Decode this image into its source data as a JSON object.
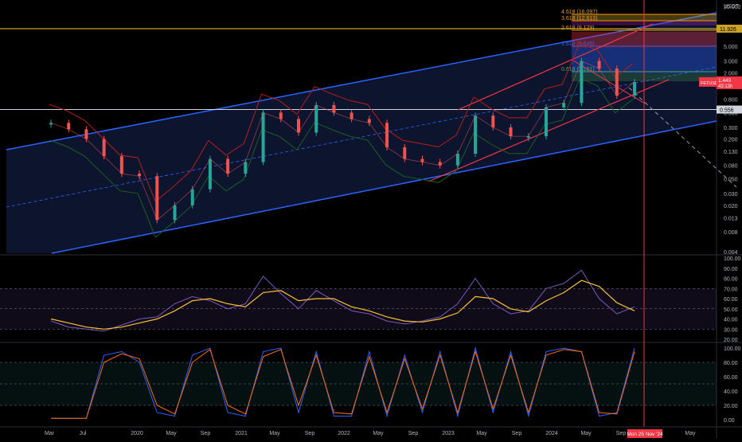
{
  "currency": "USDT",
  "price_badge": {
    "symbol": "FETUSDT",
    "price": "1.449",
    "countdown": "43:13h"
  },
  "white_line_label": "0.556",
  "gold_line_label": "11.926",
  "fib_labels": [
    "4.618 (16.097)",
    "3.618 (12.613)",
    "2.618 (9.129)",
    "1.618 (5.645)",
    "0.618 (2.161)"
  ],
  "cursor_date": "Mon 25 Nov '24",
  "x_ticks": [
    "Mar",
    "Jul",
    "2020",
    "May",
    "Sep",
    "2021",
    "May",
    "Sep",
    "2022",
    "May",
    "Sep",
    "2023",
    "May",
    "Sep",
    "2024",
    "May",
    "Sep",
    "May"
  ],
  "colors": {
    "accent_red": "#f23645",
    "channel_blue": "#2962ff",
    "gold": "#c9a227"
  },
  "chart_data": [
    {
      "type": "line",
      "name": "FET/USDT price (log scale)",
      "scale": "log",
      "ylim": [
        0.004,
        20
      ],
      "y_ticks": [
        "20.000",
        "10.000",
        "5.000",
        "3.000",
        "2.000",
        "1.300",
        "0.800",
        "0.500",
        "0.300",
        "0.200",
        "0.130",
        "0.080",
        "0.050",
        "0.030",
        "0.020",
        "0.013",
        "0.008",
        "0.004"
      ],
      "x": [
        "2019-03",
        "2019-05",
        "2019-07",
        "2019-09",
        "2019-11",
        "2020-01",
        "2020-03",
        "2020-05",
        "2020-07",
        "2020-09",
        "2020-11",
        "2021-01",
        "2021-03",
        "2021-05",
        "2021-07",
        "2021-09",
        "2021-11",
        "2022-01",
        "2022-03",
        "2022-05",
        "2022-07",
        "2022-09",
        "2022-11",
        "2023-01",
        "2023-03",
        "2023-05",
        "2023-07",
        "2023-09",
        "2023-11",
        "2024-01",
        "2024-03",
        "2024-05",
        "2024-07",
        "2024-09"
      ],
      "close": [
        0.35,
        0.28,
        0.2,
        0.11,
        0.06,
        0.055,
        0.012,
        0.02,
        0.035,
        0.1,
        0.06,
        0.09,
        0.5,
        0.4,
        0.25,
        0.65,
        0.5,
        0.4,
        0.35,
        0.15,
        0.1,
        0.09,
        0.08,
        0.12,
        0.45,
        0.3,
        0.22,
        0.22,
        0.6,
        0.7,
        3.0,
        2.3,
        0.9,
        1.449
      ],
      "horizontal_lines": [
        0.556,
        11.926
      ]
    },
    {
      "type": "line",
      "name": "RSI",
      "ylim": [
        20,
        100
      ],
      "y_ticks": [
        "100.00",
        "90.00",
        "80.00",
        "70.00",
        "60.00",
        "50.00",
        "40.00",
        "30.00",
        "20.00"
      ],
      "x": [
        "2019-03",
        "2019-05",
        "2019-07",
        "2019-09",
        "2019-11",
        "2020-01",
        "2020-03",
        "2020-05",
        "2020-07",
        "2020-09",
        "2020-11",
        "2021-01",
        "2021-03",
        "2021-05",
        "2021-07",
        "2021-09",
        "2021-11",
        "2022-01",
        "2022-03",
        "2022-05",
        "2022-07",
        "2022-09",
        "2022-11",
        "2023-01",
        "2023-03",
        "2023-05",
        "2023-07",
        "2023-09",
        "2023-11",
        "2024-01",
        "2024-03",
        "2024-05",
        "2024-07",
        "2024-09"
      ],
      "values": [
        38,
        32,
        30,
        28,
        34,
        40,
        42,
        55,
        62,
        58,
        50,
        55,
        82,
        65,
        50,
        68,
        58,
        48,
        45,
        38,
        35,
        38,
        42,
        55,
        80,
        55,
        45,
        48,
        70,
        75,
        88,
        60,
        45,
        52
      ],
      "signal": [
        40,
        36,
        32,
        30,
        32,
        36,
        40,
        48,
        58,
        60,
        55,
        52,
        66,
        68,
        58,
        60,
        60,
        52,
        48,
        42,
        38,
        37,
        40,
        46,
        62,
        60,
        50,
        47,
        58,
        66,
        78,
        72,
        56,
        48
      ]
    },
    {
      "type": "line",
      "name": "Stochastic RSI",
      "ylim": [
        0,
        100
      ],
      "y_ticks": [
        "100.00",
        "80.00",
        "60.00",
        "40.00",
        "20.00",
        "0.00"
      ],
      "x": [
        "2019-03",
        "2019-05",
        "2019-07",
        "2019-09",
        "2019-11",
        "2020-01",
        "2020-03",
        "2020-05",
        "2020-07",
        "2020-09",
        "2020-11",
        "2021-01",
        "2021-03",
        "2021-05",
        "2021-07",
        "2021-09",
        "2021-11",
        "2022-01",
        "2022-03",
        "2022-05",
        "2022-07",
        "2022-09",
        "2022-11",
        "2023-01",
        "2023-03",
        "2023-05",
        "2023-07",
        "2023-09",
        "2023-11",
        "2024-01",
        "2024-03",
        "2024-05",
        "2024-07",
        "2024-09"
      ],
      "k": [
        2,
        2,
        2,
        90,
        95,
        80,
        10,
        5,
        90,
        100,
        10,
        5,
        95,
        100,
        10,
        95,
        5,
        5,
        95,
        5,
        90,
        10,
        95,
        5,
        100,
        10,
        95,
        5,
        95,
        100,
        95,
        5,
        10,
        100
      ],
      "d": [
        2,
        2,
        2,
        80,
        92,
        85,
        20,
        8,
        80,
        98,
        20,
        8,
        88,
        98,
        20,
        90,
        10,
        8,
        88,
        10,
        85,
        15,
        90,
        10,
        95,
        15,
        90,
        10,
        90,
        98,
        95,
        10,
        8,
        95
      ]
    }
  ]
}
